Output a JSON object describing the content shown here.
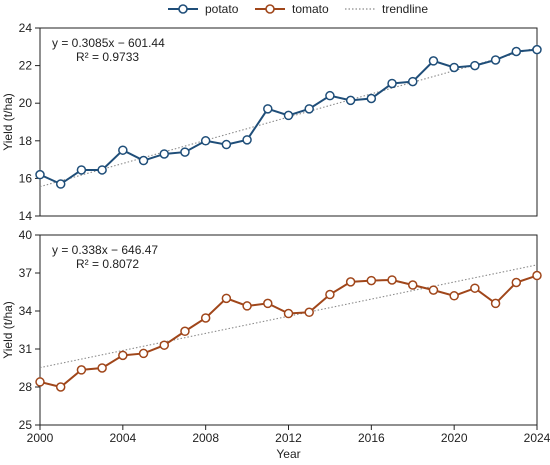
{
  "chart_data": [
    {
      "type": "line",
      "ylabel": "Yield (t/ha)",
      "xlabel": "",
      "ylim": [
        14,
        24
      ],
      "yticks": [
        14,
        16,
        18,
        20,
        22,
        24
      ],
      "xlim": [
        2000,
        2024
      ],
      "grid": false,
      "series": [
        {
          "name": "potato",
          "color": "#1f4e79",
          "x": [
            2000,
            2001,
            2002,
            2003,
            2004,
            2005,
            2006,
            2007,
            2008,
            2009,
            2010,
            2011,
            2012,
            2013,
            2014,
            2015,
            2016,
            2017,
            2018,
            2019,
            2020,
            2021,
            2022,
            2023,
            2024
          ],
          "values": [
            16.2,
            15.7,
            16.45,
            16.45,
            17.5,
            16.95,
            17.3,
            17.4,
            18.0,
            17.8,
            18.05,
            19.7,
            19.35,
            19.7,
            20.4,
            20.15,
            20.25,
            21.05,
            21.15,
            22.25,
            21.9,
            22.0,
            22.3,
            22.75,
            22.85
          ]
        }
      ],
      "trendline": {
        "slope": 0.3085,
        "intercept": -601.44
      },
      "annotation": {
        "equation": "y = 0.3085x − 601.44",
        "r2": "R² = 0.9733"
      }
    },
    {
      "type": "line",
      "ylabel": "Yield (t/ha)",
      "xlabel": "Year",
      "ylim": [
        25,
        40
      ],
      "yticks": [
        25,
        28,
        31,
        34,
        37,
        40
      ],
      "xlim": [
        2000,
        2024
      ],
      "xticks": [
        2000,
        2004,
        2008,
        2012,
        2016,
        2020,
        2024
      ],
      "grid": false,
      "series": [
        {
          "name": "tomato",
          "color": "#a0461a",
          "x": [
            2000,
            2001,
            2002,
            2003,
            2004,
            2005,
            2006,
            2007,
            2008,
            2009,
            2010,
            2011,
            2012,
            2013,
            2014,
            2015,
            2016,
            2017,
            2018,
            2019,
            2020,
            2021,
            2022,
            2023,
            2024
          ],
          "values": [
            28.4,
            28.0,
            29.35,
            29.5,
            30.5,
            30.65,
            31.3,
            32.4,
            33.45,
            35.0,
            34.4,
            34.6,
            33.8,
            33.9,
            35.3,
            36.3,
            36.4,
            36.45,
            36.05,
            35.65,
            35.2,
            35.8,
            34.6,
            36.25,
            36.8
          ]
        }
      ],
      "trendline": {
        "slope": 0.338,
        "intercept": -646.47
      },
      "annotation": {
        "equation": "y = 0.338x − 646.47",
        "r2": "R² = 0.8072"
      }
    }
  ],
  "legend": {
    "placement": "top-center",
    "items": [
      {
        "label": "potato",
        "kind": "series"
      },
      {
        "label": "tomato",
        "kind": "series"
      },
      {
        "label": "trendline",
        "kind": "trend"
      }
    ]
  },
  "colors": {
    "potato": "#1f4e79",
    "tomato": "#a0461a",
    "trend": "#8c8c8c",
    "marker_fill": "#ffffff"
  }
}
